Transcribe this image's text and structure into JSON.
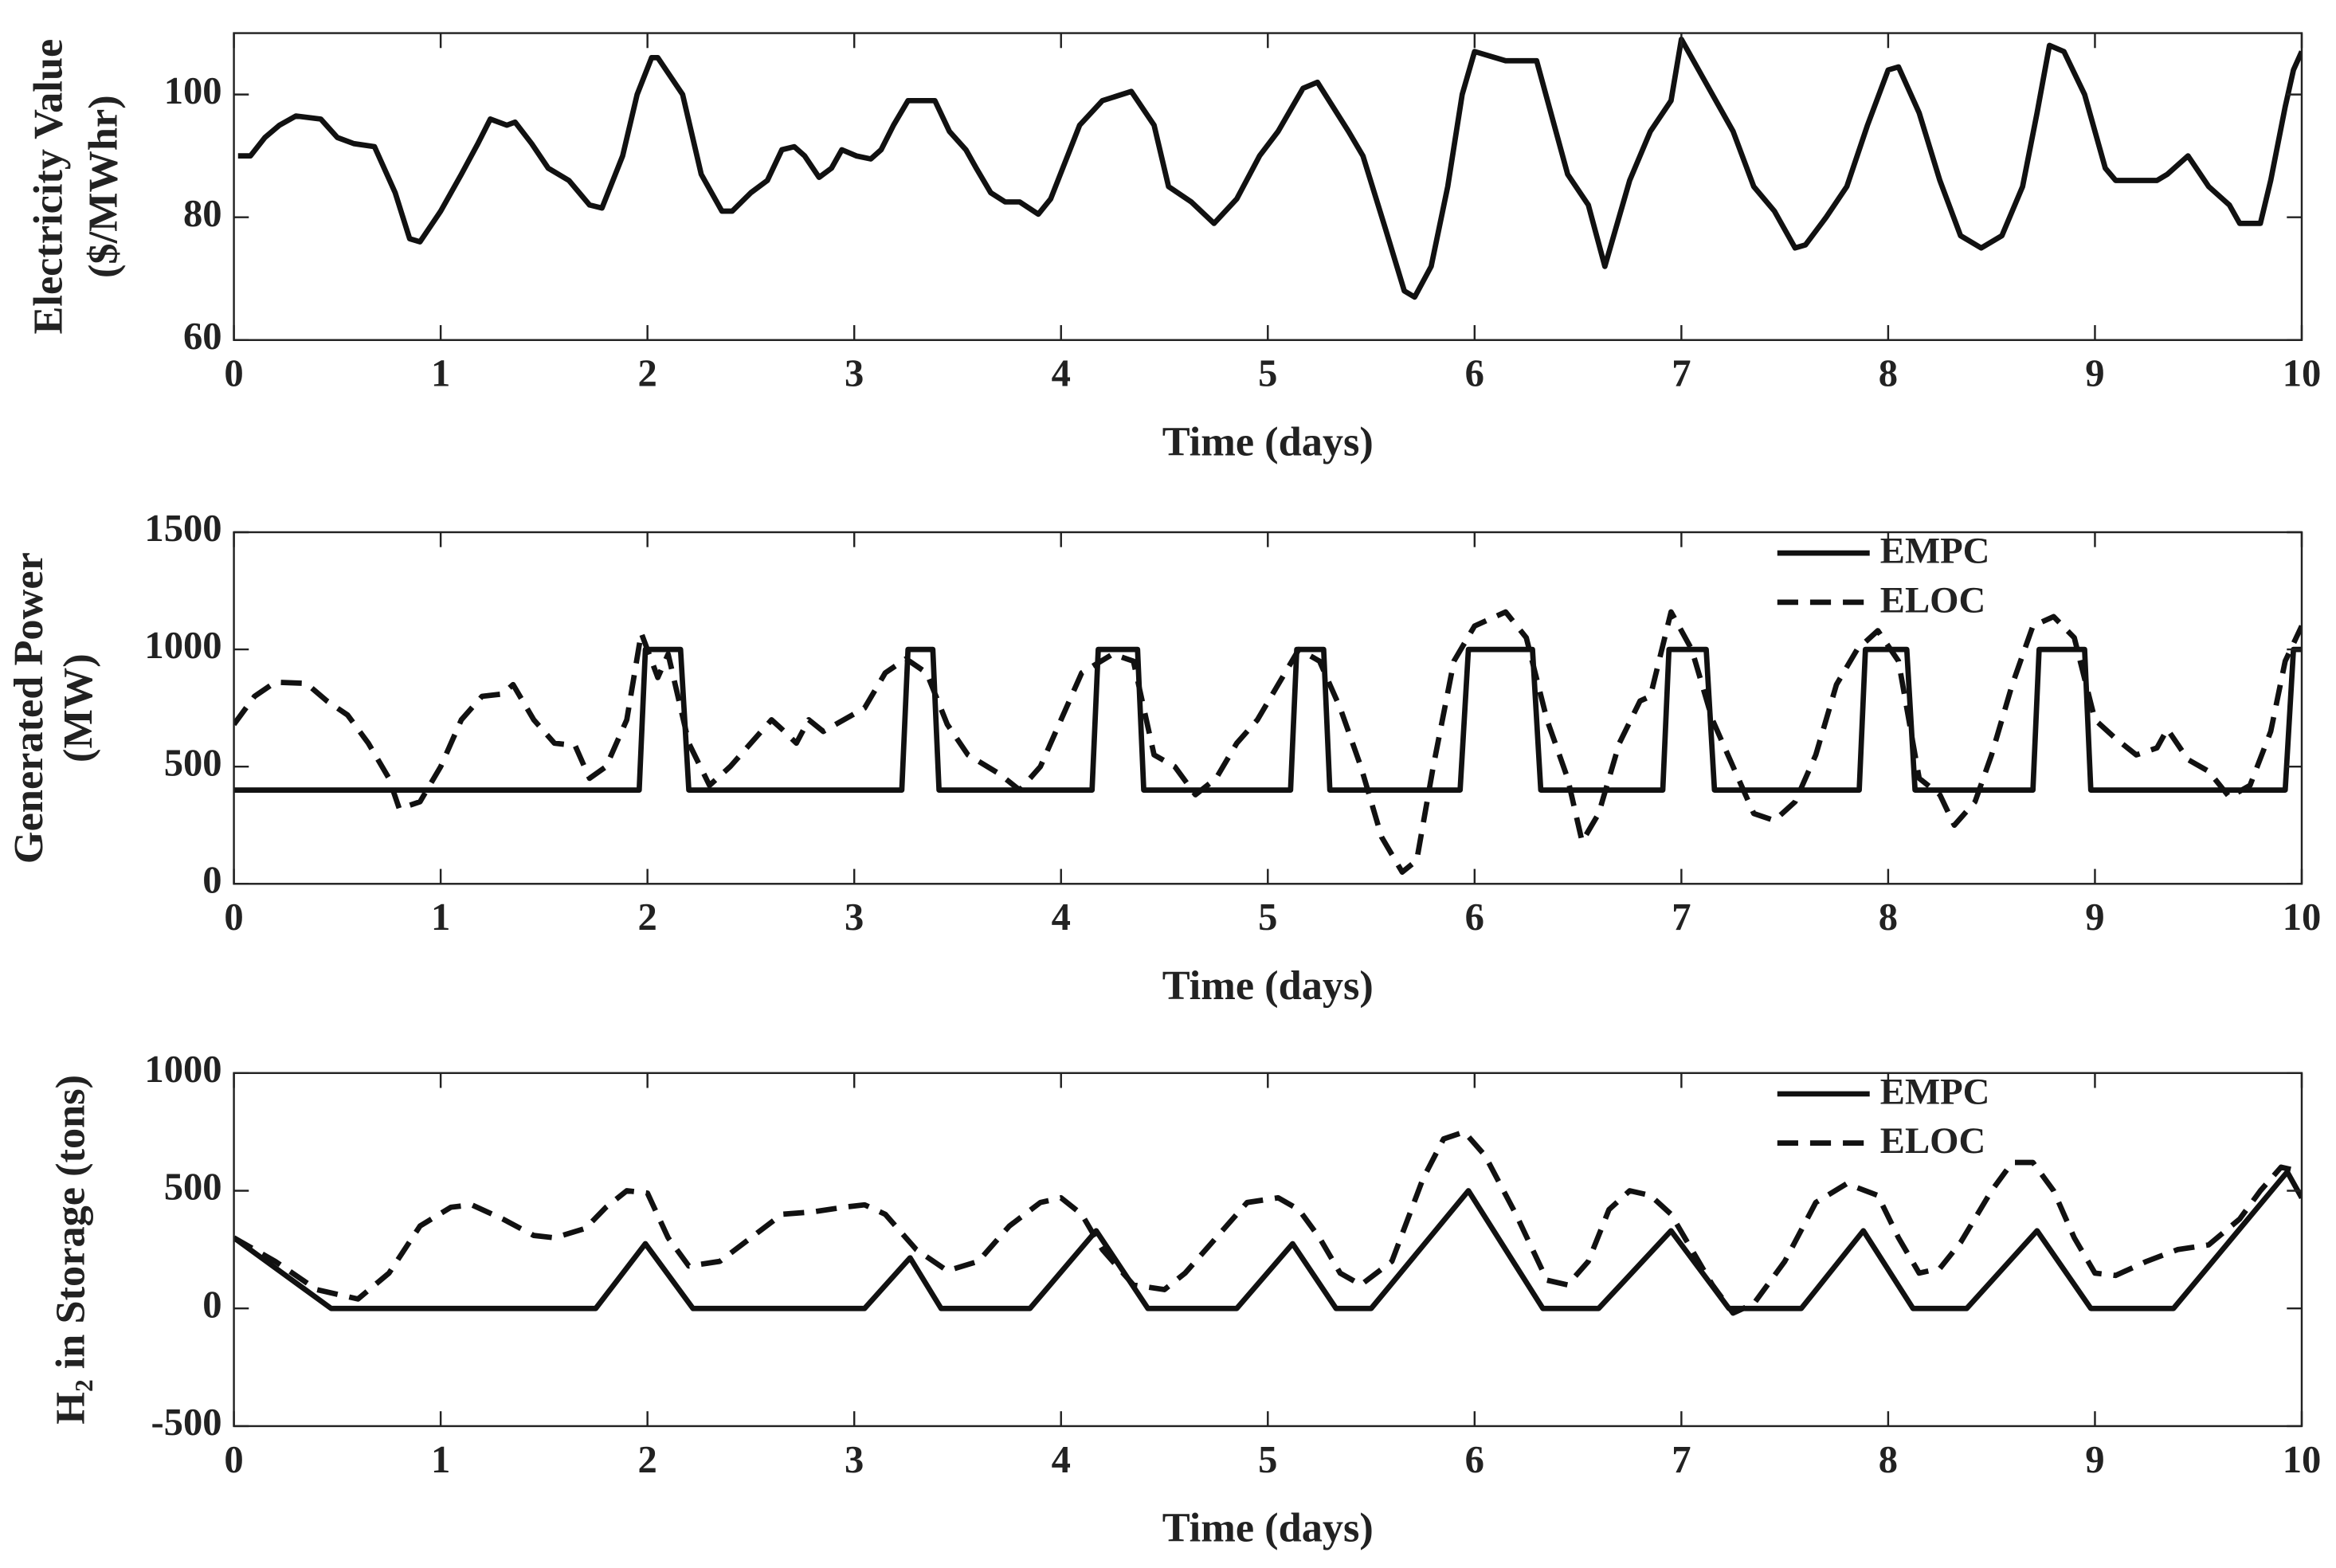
{
  "chart_data": [
    {
      "type": "line",
      "ylabel": [
        "Electricity Value",
        "($/MWhr)"
      ],
      "xlabel": "Time (days)",
      "xlim": [
        0,
        10
      ],
      "xticks": [
        0,
        1,
        2,
        3,
        4,
        5,
        6,
        7,
        8,
        9,
        10
      ],
      "ylim": [
        60,
        110
      ],
      "yticks": [
        60,
        80,
        100
      ],
      "grid": false,
      "series": [
        {
          "name": null,
          "color": "#111111",
          "style": "solid",
          "x": [
            0.02,
            0.08,
            0.15,
            0.22,
            0.3,
            0.42,
            0.5,
            0.58,
            0.68,
            0.78,
            0.85,
            0.9,
            1.0,
            1.1,
            1.18,
            1.24,
            1.32,
            1.36,
            1.44,
            1.52,
            1.62,
            1.72,
            1.78,
            1.88,
            1.95,
            2.02,
            2.05,
            2.17,
            2.26,
            2.36,
            2.41,
            2.5,
            2.58,
            2.65,
            2.71,
            2.76,
            2.83,
            2.89,
            2.94,
            3.01,
            3.08,
            3.13,
            3.19,
            3.26,
            3.39,
            3.46,
            3.54,
            3.59,
            3.66,
            3.73,
            3.8,
            3.89,
            3.95,
            4.09,
            4.2,
            4.34,
            4.45,
            4.52,
            4.63,
            4.74,
            4.85,
            4.96,
            5.05,
            5.17,
            5.24,
            5.39,
            5.46,
            5.57,
            5.66,
            5.71,
            5.79,
            5.87,
            5.94,
            6.0,
            6.15,
            6.3,
            6.45,
            6.55,
            6.63,
            6.75,
            6.85,
            6.95,
            7.0,
            7.1,
            7.25,
            7.35,
            7.45,
            7.55,
            7.6,
            7.7,
            7.8,
            7.9,
            8.0,
            8.05,
            8.15,
            8.25,
            8.35,
            8.45,
            8.55,
            8.65,
            8.72,
            8.78,
            8.85,
            8.95,
            9.05,
            9.1,
            9.2,
            9.3,
            9.35,
            9.45,
            9.55,
            9.65,
            9.7,
            9.8,
            9.85,
            9.92,
            9.96,
            10.0
          ],
          "values": [
            90,
            90,
            93,
            95,
            96.5,
            96,
            93,
            92,
            91.5,
            84,
            76.5,
            76,
            81,
            87,
            92,
            96,
            95,
            95.5,
            92,
            88,
            86,
            82,
            81.5,
            90,
            100,
            106,
            106,
            100,
            87,
            81,
            81,
            84,
            86,
            91,
            91.5,
            90,
            86.5,
            88,
            91,
            90,
            89.5,
            91,
            95,
            99,
            99,
            94,
            91,
            88,
            84,
            82.5,
            82.5,
            80.5,
            83,
            95,
            99,
            100.5,
            95,
            85,
            82.5,
            79,
            83,
            90,
            94,
            101,
            102,
            94,
            90,
            78,
            68,
            67,
            72,
            85,
            100,
            107,
            105.5,
            105.5,
            87,
            82,
            72,
            86,
            94,
            99,
            109,
            103,
            94,
            85,
            81,
            75,
            75.5,
            80,
            85,
            95,
            104,
            104.5,
            97,
            86,
            77,
            75,
            77,
            85,
            97,
            108,
            107,
            100,
            88,
            86,
            86,
            86,
            87,
            90,
            85,
            82,
            79,
            79,
            86,
            98,
            104,
            107
          ]
        }
      ]
    },
    {
      "type": "line",
      "ylabel": [
        "Generated Power",
        "(MW)"
      ],
      "xlabel": "Time (days)",
      "xlim": [
        0,
        10
      ],
      "xticks": [
        0,
        1,
        2,
        3,
        4,
        5,
        6,
        7,
        8,
        9,
        10
      ],
      "ylim": [
        0,
        1500
      ],
      "yticks": [
        0,
        500,
        1000,
        1500
      ],
      "grid": false,
      "legend": "northeast",
      "series": [
        {
          "name": "EMPC",
          "color": "#111111",
          "style": "solid",
          "x": [
            0,
            1.96,
            1.99,
            2.16,
            2.2,
            3.23,
            3.26,
            3.38,
            3.41,
            4.15,
            4.18,
            4.37,
            4.4,
            5.11,
            5.14,
            5.27,
            5.3,
            5.93,
            5.97,
            6.28,
            6.32,
            6.91,
            6.94,
            7.12,
            7.16,
            7.86,
            7.89,
            8.09,
            8.13,
            8.7,
            8.73,
            8.95,
            8.98,
            9.92,
            9.96,
            10
          ],
          "values": [
            400,
            400,
            1000,
            1000,
            400,
            400,
            1000,
            1000,
            400,
            400,
            1000,
            1000,
            400,
            400,
            1000,
            1000,
            400,
            400,
            1000,
            1000,
            400,
            400,
            1000,
            1000,
            400,
            400,
            1000,
            1000,
            400,
            400,
            1000,
            1000,
            400,
            400,
            1000,
            1000
          ]
        },
        {
          "name": "ELOC",
          "color": "#111111",
          "style": "dashed",
          "x": [
            0,
            0.1,
            0.2,
            0.35,
            0.45,
            0.55,
            0.65,
            0.75,
            0.8,
            0.9,
            1.0,
            1.1,
            1.2,
            1.3,
            1.35,
            1.45,
            1.55,
            1.65,
            1.72,
            1.8,
            1.9,
            1.97,
            2.05,
            2.1,
            2.2,
            2.3,
            2.4,
            2.5,
            2.6,
            2.65,
            2.72,
            2.78,
            2.85,
            2.95,
            3.05,
            3.15,
            3.25,
            3.35,
            3.45,
            3.55,
            3.7,
            3.8,
            3.9,
            4.0,
            4.1,
            4.25,
            4.35,
            4.45,
            4.55,
            4.65,
            4.75,
            4.85,
            4.95,
            5.05,
            5.15,
            5.25,
            5.35,
            5.45,
            5.55,
            5.65,
            5.72,
            5.8,
            5.9,
            6.0,
            6.15,
            6.25,
            6.35,
            6.45,
            6.52,
            6.6,
            6.7,
            6.8,
            6.85,
            6.95,
            7.05,
            7.15,
            7.25,
            7.35,
            7.45,
            7.55,
            7.65,
            7.75,
            7.85,
            7.95,
            8.05,
            8.15,
            8.25,
            8.32,
            8.42,
            8.5,
            8.6,
            8.7,
            8.8,
            8.9,
            9.0,
            9.1,
            9.2,
            9.3,
            9.35,
            9.45,
            9.55,
            9.65,
            9.75,
            9.85,
            9.92,
            10.0
          ],
          "values": [
            680,
            800,
            860,
            855,
            780,
            720,
            600,
            450,
            320,
            350,
            500,
            700,
            800,
            810,
            850,
            700,
            600,
            590,
            450,
            500,
            700,
            1070,
            880,
            980,
            600,
            420,
            500,
            600,
            700,
            660,
            600,
            700,
            650,
            700,
            750,
            900,
            960,
            900,
            680,
            550,
            470,
            400,
            500,
            700,
            900,
            980,
            950,
            550,
            500,
            380,
            450,
            600,
            700,
            850,
            1000,
            950,
            750,
            500,
            200,
            50,
            100,
            500,
            950,
            1100,
            1160,
            1050,
            700,
            450,
            180,
            300,
            600,
            780,
            800,
            1160,
            1000,
            700,
            500,
            300,
            270,
            350,
            550,
            850,
            1000,
            1080,
            950,
            450,
            380,
            250,
            350,
            550,
            850,
            1100,
            1140,
            1050,
            700,
            620,
            550,
            580,
            660,
            530,
            480,
            370,
            420,
            650,
            950,
            1100
          ]
        }
      ]
    },
    {
      "type": "line",
      "ylabel": [
        "H₂ in Storage (tons)"
      ],
      "xlabel": "Time (days)",
      "xlim": [
        0,
        10
      ],
      "xticks": [
        0,
        1,
        2,
        3,
        4,
        5,
        6,
        7,
        8,
        9,
        10
      ],
      "ylim": [
        -500,
        1000
      ],
      "yticks": [
        -500,
        0,
        500,
        1000
      ],
      "grid": false,
      "legend": "northeast",
      "series": [
        {
          "name": "EMPC",
          "color": "#111111",
          "style": "solid",
          "x": [
            0,
            0.47,
            1.75,
            1.99,
            2.22,
            3.05,
            3.27,
            3.42,
            3.85,
            4.17,
            4.42,
            4.85,
            5.12,
            5.33,
            5.5,
            5.97,
            6.33,
            6.6,
            6.95,
            7.23,
            7.58,
            7.88,
            8.12,
            8.38,
            8.72,
            8.98,
            9.38,
            9.93,
            10
          ],
          "values": [
            300,
            0,
            0,
            275,
            0,
            0,
            215,
            0,
            0,
            330,
            0,
            0,
            275,
            0,
            0,
            500,
            0,
            0,
            330,
            0,
            0,
            330,
            0,
            0,
            330,
            0,
            0,
            580,
            470
          ]
        },
        {
          "name": "ELOC",
          "color": "#111111",
          "style": "dashed",
          "x": [
            0,
            0.2,
            0.4,
            0.6,
            0.75,
            0.9,
            1.05,
            1.15,
            1.3,
            1.45,
            1.55,
            1.7,
            1.8,
            1.9,
            2.0,
            2.1,
            2.2,
            2.35,
            2.5,
            2.65,
            2.8,
            2.95,
            3.05,
            3.15,
            3.3,
            3.45,
            3.6,
            3.75,
            3.9,
            4.0,
            4.1,
            4.2,
            4.35,
            4.5,
            4.6,
            4.75,
            4.9,
            5.05,
            5.15,
            5.25,
            5.35,
            5.45,
            5.6,
            5.75,
            5.85,
            5.95,
            6.05,
            6.2,
            6.35,
            6.45,
            6.55,
            6.65,
            6.75,
            6.85,
            6.95,
            7.05,
            7.15,
            7.25,
            7.35,
            7.5,
            7.65,
            7.8,
            7.95,
            8.05,
            8.15,
            8.25,
            8.35,
            8.5,
            8.6,
            8.7,
            8.8,
            8.9,
            9.0,
            9.1,
            9.25,
            9.4,
            9.55,
            9.7,
            9.8,
            9.9,
            10
          ],
          "values": [
            300,
            200,
            80,
            40,
            150,
            350,
            430,
            440,
            380,
            310,
            300,
            340,
            430,
            500,
            490,
            300,
            180,
            200,
            300,
            400,
            410,
            430,
            440,
            400,
            250,
            160,
            200,
            350,
            450,
            470,
            400,
            250,
            100,
            80,
            150,
            300,
            450,
            470,
            420,
            300,
            150,
            100,
            200,
            550,
            720,
            750,
            650,
            400,
            120,
            100,
            200,
            420,
            500,
            480,
            400,
            250,
            100,
            -20,
            20,
            200,
            450,
            530,
            480,
            300,
            150,
            170,
            280,
            500,
            620,
            620,
            500,
            300,
            150,
            140,
            200,
            250,
            270,
            380,
            500,
            600,
            580
          ]
        }
      ]
    }
  ]
}
